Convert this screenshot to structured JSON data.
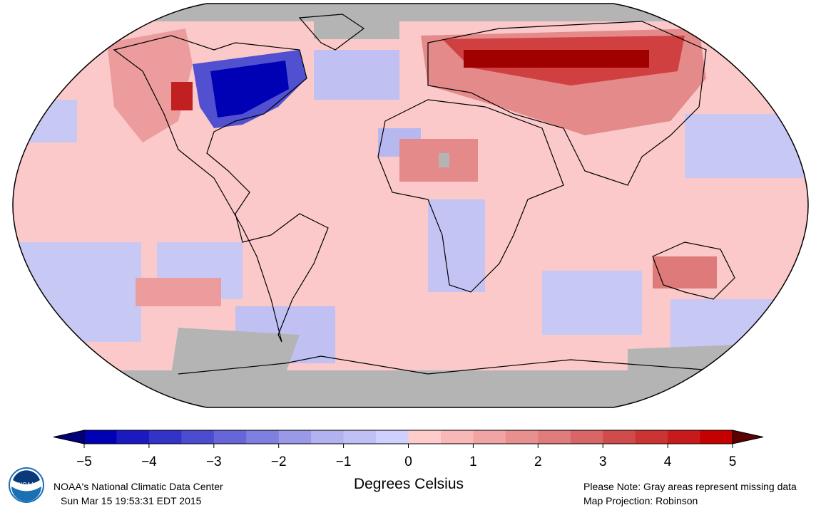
{
  "colorbar": {
    "ticks": [
      "−5",
      "−4",
      "−3",
      "−2",
      "−1",
      "0",
      "1",
      "2",
      "3",
      "4",
      "5"
    ],
    "tick_values": [
      -5,
      -4,
      -3,
      -2,
      -1,
      0,
      1,
      2,
      3,
      4,
      5
    ],
    "bin_step": 0.5,
    "bin_colors": [
      "#0000b4",
      "#1a1ac0",
      "#3333c8",
      "#4c4cd0",
      "#6666d8",
      "#7f7fe0",
      "#9999e8",
      "#b2b2f0",
      "#c0c0f6",
      "#d0d0ff",
      "#ffcccc",
      "#f8b8b8",
      "#f0a4a4",
      "#e89090",
      "#e07c7c",
      "#d86666",
      "#d04c4c",
      "#cc3333",
      "#c81a1a",
      "#c40000"
    ],
    "under_color": "#000078",
    "over_color": "#5a0000",
    "label": "Degrees Celsius"
  },
  "colors": {
    "missing": "#b4b4b4",
    "ocean_default": "#fbc9c9"
  },
  "footer": {
    "org": "NOAA's National Climatic Data Center",
    "timestamp": "Sun Mar 15 19:53:31 EDT 2015",
    "note": "Please Note: Gray areas represent missing data",
    "projection": "Map Projection: Robinson",
    "logo_text": "NOAA"
  }
}
